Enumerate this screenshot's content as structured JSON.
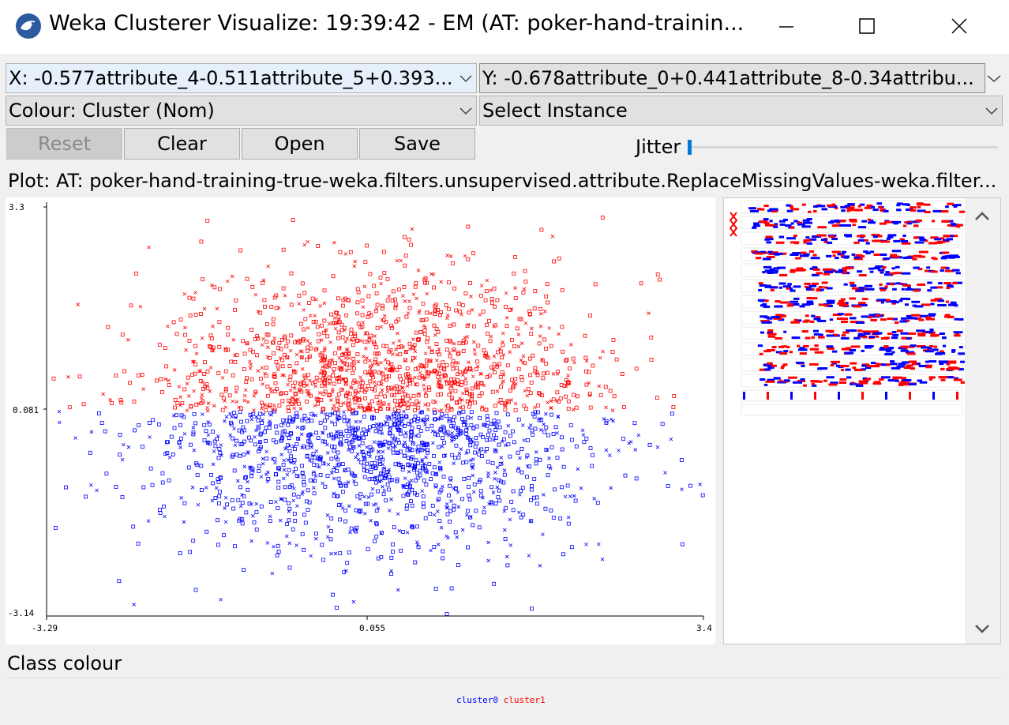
{
  "window": {
    "title": "Weka Clusterer Visualize: 19:39:42 - EM (AT: poker-hand-trainin..."
  },
  "controls": {
    "x_axis": "X: -0.577attribute_4-0.511attribute_5+0.393...",
    "y_axis": "Y: -0.678attribute_0+0.441attribute_8-0.34attribu...",
    "colour": "Colour: Cluster (Nom)",
    "instance": "Select Instance",
    "buttons": {
      "reset": "Reset",
      "clear": "Clear",
      "open": "Open",
      "save": "Save"
    },
    "jitter_label": "Jitter",
    "jitter_value": 0
  },
  "plot_label": "Plot: AT: poker-hand-training-true-weka.filters.unsupervised.attribute.ReplaceMissingValues-weka.filter...",
  "chart_data": {
    "type": "scatter",
    "x_ticks": [
      "-3.29",
      "0.055",
      "3.4"
    ],
    "y_ticks": [
      "3.3",
      "0.081",
      "-3.14"
    ],
    "xlim": [
      -3.29,
      3.4
    ],
    "ylim": [
      -3.14,
      3.3
    ],
    "series": [
      {
        "name": "cluster0",
        "color": "#0000ff",
        "y_range": [
          -3.14,
          0.081
        ]
      },
      {
        "name": "cluster1",
        "color": "#ff0000",
        "y_range": [
          0.081,
          3.3
        ]
      }
    ],
    "markers": [
      "square",
      "x"
    ]
  },
  "legend": {
    "title": "Class colour",
    "items": [
      {
        "label": "cluster0",
        "color": "#0000ff"
      },
      {
        "label": "cluster1",
        "color": "#ff0000"
      }
    ]
  },
  "icons": {
    "app": "weka-bird-icon",
    "minimize": "minimize-icon",
    "maximize": "maximize-icon",
    "close": "close-icon",
    "dropdown": "chevron-down-icon",
    "scroll_up": "scroll-up-icon",
    "scroll_down": "scroll-down-icon"
  }
}
